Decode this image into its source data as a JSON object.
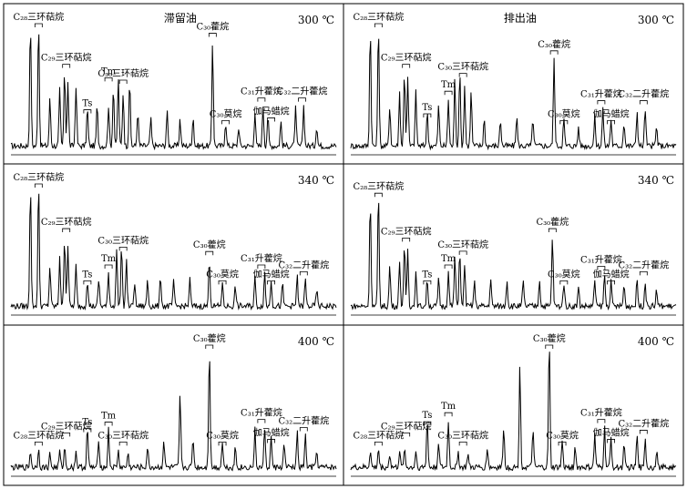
{
  "chart_data": {
    "type": "line",
    "columns": [
      {
        "title": "滞留油"
      },
      {
        "title": "排出油"
      }
    ],
    "rows": [
      {
        "temperature": "300 ℃"
      },
      {
        "temperature": "340 ℃"
      },
      {
        "temperature": "400 ℃"
      }
    ],
    "axis": {
      "x": "retention time (unlabeled)",
      "y": "relative abundance (unlabeled)",
      "grid": false
    },
    "panels": [
      {
        "title": "滞留油",
        "temperature": "300 ℃",
        "peaks": [
          [
            0.06,
            0.92
          ],
          [
            0.085,
            0.95
          ],
          [
            0.12,
            0.35
          ],
          [
            0.15,
            0.42
          ],
          [
            0.165,
            0.55
          ],
          [
            0.175,
            0.48
          ],
          [
            0.2,
            0.45
          ],
          [
            0.235,
            0.28
          ],
          [
            0.265,
            0.3
          ],
          [
            0.3,
            0.3
          ],
          [
            0.315,
            0.45
          ],
          [
            0.33,
            0.5
          ],
          [
            0.345,
            0.4
          ],
          [
            0.365,
            0.48
          ],
          [
            0.39,
            0.25
          ],
          [
            0.43,
            0.2
          ],
          [
            0.48,
            0.25
          ],
          [
            0.52,
            0.2
          ],
          [
            0.56,
            0.22
          ],
          [
            0.62,
            0.78
          ],
          [
            0.66,
            0.18
          ],
          [
            0.7,
            0.14
          ],
          [
            0.75,
            0.25
          ],
          [
            0.775,
            0.3
          ],
          [
            0.79,
            0.22
          ],
          [
            0.83,
            0.18
          ],
          [
            0.875,
            0.28
          ],
          [
            0.9,
            0.3
          ],
          [
            0.94,
            0.15
          ]
        ],
        "annotations": [
          {
            "text": "C₂₈三环萜烷",
            "x": 0.085
          },
          {
            "text": "C₂₉三环萜烷",
            "x": 0.17
          },
          {
            "text": "Ts",
            "x": 0.235
          },
          {
            "text": "Tm",
            "x": 0.3
          },
          {
            "text": "C₃₀三环萜烷",
            "x": 0.345
          },
          {
            "text": "C₃₀藿烷",
            "x": 0.62
          },
          {
            "text": "C₃₀莫烷",
            "x": 0.66
          },
          {
            "text": "C₃₁升藿烷",
            "x": 0.77
          },
          {
            "text": "伽马蜡烷",
            "x": 0.8
          },
          {
            "text": "C₃₂二升藿烷",
            "x": 0.895
          }
        ]
      },
      {
        "title": "排出油",
        "temperature": "300 ℃",
        "peaks": [
          [
            0.06,
            0.88
          ],
          [
            0.085,
            0.92
          ],
          [
            0.12,
            0.3
          ],
          [
            0.15,
            0.4
          ],
          [
            0.165,
            0.55
          ],
          [
            0.175,
            0.5
          ],
          [
            0.2,
            0.4
          ],
          [
            0.235,
            0.25
          ],
          [
            0.27,
            0.3
          ],
          [
            0.3,
            0.35
          ],
          [
            0.32,
            0.5
          ],
          [
            0.335,
            0.55
          ],
          [
            0.35,
            0.45
          ],
          [
            0.37,
            0.4
          ],
          [
            0.41,
            0.2
          ],
          [
            0.46,
            0.2
          ],
          [
            0.51,
            0.22
          ],
          [
            0.56,
            0.2
          ],
          [
            0.625,
            0.65
          ],
          [
            0.655,
            0.2
          ],
          [
            0.7,
            0.14
          ],
          [
            0.75,
            0.22
          ],
          [
            0.775,
            0.28
          ],
          [
            0.8,
            0.2
          ],
          [
            0.84,
            0.18
          ],
          [
            0.88,
            0.26
          ],
          [
            0.905,
            0.28
          ],
          [
            0.94,
            0.14
          ]
        ],
        "annotations": [
          {
            "text": "C₂₈三环萜烷",
            "x": 0.085
          },
          {
            "text": "C₂₉三环萜烷",
            "x": 0.17
          },
          {
            "text": "Ts",
            "x": 0.235
          },
          {
            "text": "Tm",
            "x": 0.3
          },
          {
            "text": "C₃₀三环萜烷",
            "x": 0.345
          },
          {
            "text": "C₃₀藿烷",
            "x": 0.625
          },
          {
            "text": "C₃₀莫烷",
            "x": 0.655
          },
          {
            "text": "C₃₁升藿烷",
            "x": 0.77
          },
          {
            "text": "伽马蜡烷",
            "x": 0.8
          },
          {
            "text": "C₃₂二升藿烷",
            "x": 0.9
          }
        ]
      },
      {
        "title": "",
        "temperature": "340 ℃",
        "peaks": [
          [
            0.06,
            0.9
          ],
          [
            0.085,
            0.92
          ],
          [
            0.12,
            0.3
          ],
          [
            0.15,
            0.38
          ],
          [
            0.165,
            0.52
          ],
          [
            0.175,
            0.46
          ],
          [
            0.2,
            0.3
          ],
          [
            0.235,
            0.2
          ],
          [
            0.27,
            0.2
          ],
          [
            0.3,
            0.25
          ],
          [
            0.325,
            0.42
          ],
          [
            0.34,
            0.45
          ],
          [
            0.355,
            0.35
          ],
          [
            0.38,
            0.18
          ],
          [
            0.42,
            0.2
          ],
          [
            0.46,
            0.22
          ],
          [
            0.5,
            0.18
          ],
          [
            0.55,
            0.2
          ],
          [
            0.61,
            0.35
          ],
          [
            0.65,
            0.18
          ],
          [
            0.69,
            0.15
          ],
          [
            0.75,
            0.22
          ],
          [
            0.78,
            0.25
          ],
          [
            0.8,
            0.2
          ],
          [
            0.835,
            0.16
          ],
          [
            0.88,
            0.22
          ],
          [
            0.905,
            0.2
          ],
          [
            0.94,
            0.12
          ]
        ],
        "annotations": [
          {
            "text": "C₂₈三环萜烷",
            "x": 0.085
          },
          {
            "text": "C₂₉三环萜烷",
            "x": 0.17
          },
          {
            "text": "Ts",
            "x": 0.235
          },
          {
            "text": "Tm",
            "x": 0.3
          },
          {
            "text": "C₃₀三环萜烷",
            "x": 0.345
          },
          {
            "text": "C₃₀藿烷",
            "x": 0.61
          },
          {
            "text": "C₃₀莫烷",
            "x": 0.65
          },
          {
            "text": "C₃₁升藿烷",
            "x": 0.77
          },
          {
            "text": "伽马蜡烷",
            "x": 0.8
          },
          {
            "text": "C₃₂二升藿烷",
            "x": 0.9
          }
        ]
      },
      {
        "title": "",
        "temperature": "340 ℃",
        "peaks": [
          [
            0.06,
            0.8
          ],
          [
            0.085,
            0.85
          ],
          [
            0.12,
            0.3
          ],
          [
            0.15,
            0.35
          ],
          [
            0.165,
            0.45
          ],
          [
            0.175,
            0.42
          ],
          [
            0.2,
            0.25
          ],
          [
            0.235,
            0.2
          ],
          [
            0.27,
            0.2
          ],
          [
            0.3,
            0.25
          ],
          [
            0.32,
            0.38
          ],
          [
            0.335,
            0.42
          ],
          [
            0.35,
            0.32
          ],
          [
            0.38,
            0.18
          ],
          [
            0.43,
            0.2
          ],
          [
            0.48,
            0.2
          ],
          [
            0.53,
            0.18
          ],
          [
            0.58,
            0.2
          ],
          [
            0.62,
            0.52
          ],
          [
            0.655,
            0.18
          ],
          [
            0.7,
            0.14
          ],
          [
            0.75,
            0.2
          ],
          [
            0.78,
            0.24
          ],
          [
            0.8,
            0.18
          ],
          [
            0.84,
            0.16
          ],
          [
            0.88,
            0.2
          ],
          [
            0.905,
            0.18
          ],
          [
            0.94,
            0.12
          ]
        ],
        "annotations": [
          {
            "text": "C₂₈三环萜烷",
            "x": 0.085
          },
          {
            "text": "C₂₉三环萜烷",
            "x": 0.17
          },
          {
            "text": "Ts",
            "x": 0.235
          },
          {
            "text": "Tm",
            "x": 0.3
          },
          {
            "text": "C₃₀三环萜烷",
            "x": 0.345
          },
          {
            "text": "C₃₀藿烷",
            "x": 0.62
          },
          {
            "text": "C₃₀莫烷",
            "x": 0.655
          },
          {
            "text": "C₃₁升藿烷",
            "x": 0.77
          },
          {
            "text": "伽马蜡烷",
            "x": 0.8
          },
          {
            "text": "C₃₂二升藿烷",
            "x": 0.9
          }
        ]
      },
      {
        "title": "",
        "temperature": "400 ℃",
        "peaks": [
          [
            0.06,
            0.12
          ],
          [
            0.085,
            0.14
          ],
          [
            0.12,
            0.1
          ],
          [
            0.15,
            0.12
          ],
          [
            0.165,
            0.15
          ],
          [
            0.2,
            0.12
          ],
          [
            0.235,
            0.3
          ],
          [
            0.27,
            0.2
          ],
          [
            0.3,
            0.28
          ],
          [
            0.33,
            0.12
          ],
          [
            0.36,
            0.1
          ],
          [
            0.42,
            0.15
          ],
          [
            0.47,
            0.2
          ],
          [
            0.52,
            0.55
          ],
          [
            0.56,
            0.22
          ],
          [
            0.61,
            0.9
          ],
          [
            0.65,
            0.2
          ],
          [
            0.69,
            0.15
          ],
          [
            0.75,
            0.28
          ],
          [
            0.78,
            0.3
          ],
          [
            0.8,
            0.22
          ],
          [
            0.84,
            0.18
          ],
          [
            0.88,
            0.26
          ],
          [
            0.905,
            0.24
          ],
          [
            0.94,
            0.12
          ]
        ],
        "annotations": [
          {
            "text": "C₂₈三环萜烷",
            "x": 0.085
          },
          {
            "text": "C₂₉三环萜烷",
            "x": 0.17
          },
          {
            "text": "Ts",
            "x": 0.235
          },
          {
            "text": "Tm",
            "x": 0.3
          },
          {
            "text": "C₃₀三环萜烷",
            "x": 0.345
          },
          {
            "text": "C₃₀藿烷",
            "x": 0.61
          },
          {
            "text": "C₃₀莫烷",
            "x": 0.65
          },
          {
            "text": "C₃₁升藿烷",
            "x": 0.77
          },
          {
            "text": "伽马蜡烷",
            "x": 0.8
          },
          {
            "text": "C₃₂二升藿烷",
            "x": 0.9
          }
        ]
      },
      {
        "title": "",
        "temperature": "400 ℃",
        "peaks": [
          [
            0.06,
            0.12
          ],
          [
            0.085,
            0.14
          ],
          [
            0.12,
            0.1
          ],
          [
            0.15,
            0.12
          ],
          [
            0.165,
            0.15
          ],
          [
            0.2,
            0.12
          ],
          [
            0.235,
            0.35
          ],
          [
            0.27,
            0.2
          ],
          [
            0.3,
            0.35
          ],
          [
            0.33,
            0.12
          ],
          [
            0.36,
            0.1
          ],
          [
            0.42,
            0.15
          ],
          [
            0.47,
            0.3
          ],
          [
            0.52,
            0.75
          ],
          [
            0.56,
            0.28
          ],
          [
            0.61,
            0.95
          ],
          [
            0.65,
            0.2
          ],
          [
            0.69,
            0.15
          ],
          [
            0.75,
            0.25
          ],
          [
            0.78,
            0.3
          ],
          [
            0.8,
            0.22
          ],
          [
            0.84,
            0.16
          ],
          [
            0.88,
            0.24
          ],
          [
            0.905,
            0.22
          ],
          [
            0.94,
            0.12
          ]
        ],
        "annotations": [
          {
            "text": "C₂₈三环萜烷",
            "x": 0.085
          },
          {
            "text": "C₂₉三环萜烷",
            "x": 0.17
          },
          {
            "text": "Ts",
            "x": 0.235
          },
          {
            "text": "Tm",
            "x": 0.3
          },
          {
            "text": "C₃₀三环萜烷",
            "x": 0.345
          },
          {
            "text": "C₃₀藿烷",
            "x": 0.61
          },
          {
            "text": "C₃₀莫烷",
            "x": 0.65
          },
          {
            "text": "C₃₁升藿烷",
            "x": 0.77
          },
          {
            "text": "伽马蜡烷",
            "x": 0.8
          },
          {
            "text": "C₃₂二升藿烷",
            "x": 0.9
          }
        ]
      }
    ]
  }
}
